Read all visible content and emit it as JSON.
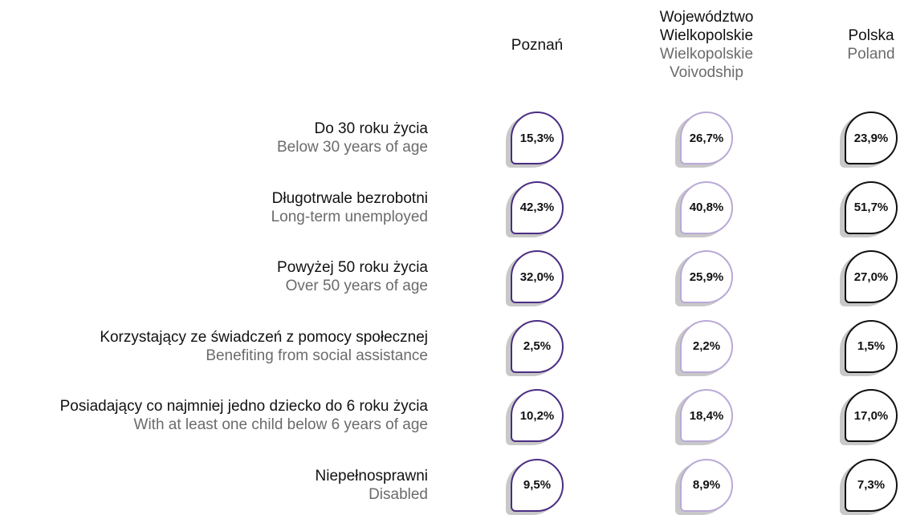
{
  "columns": [
    {
      "label": "Poznań",
      "color": "#4b2e83"
    },
    {
      "label": "Województwo Wielkopolskie",
      "label_en": "Wielkopolskie Voivodship",
      "color": "#b9a9d6"
    },
    {
      "label": "Polska",
      "label_en": "Poland",
      "color": "#111111"
    }
  ],
  "rows": [
    {
      "label": "Do 30 roku życia",
      "label_en": "Below 30 years of age",
      "values": [
        "15,3%",
        "26,7%",
        "23,9%"
      ]
    },
    {
      "label": "Długotrwale bezrobotni",
      "label_en": "Long-term unemployed",
      "values": [
        "42,3%",
        "40,8%",
        "51,7%"
      ]
    },
    {
      "label": "Powyżej 50 roku życia",
      "label_en": "Over 50 years of age",
      "values": [
        "32,0%",
        "25,9%",
        "27,0%"
      ]
    },
    {
      "label": "Korzystający ze świadczeń z pomocy społecznej",
      "label_en": "Benefiting from social assistance",
      "values": [
        "2,5%",
        "2,2%",
        "1,5%"
      ]
    },
    {
      "label": "Posiadający co najmniej jedno dziecko do 6 roku życia",
      "label_en": "With at least one child below 6 years of age",
      "values": [
        "10,2%",
        "18,4%",
        "17,0%"
      ]
    },
    {
      "label": "Niepełnosprawni",
      "label_en": "Disabled",
      "values": [
        "9,5%",
        "8,9%",
        "7,3%"
      ]
    }
  ]
}
